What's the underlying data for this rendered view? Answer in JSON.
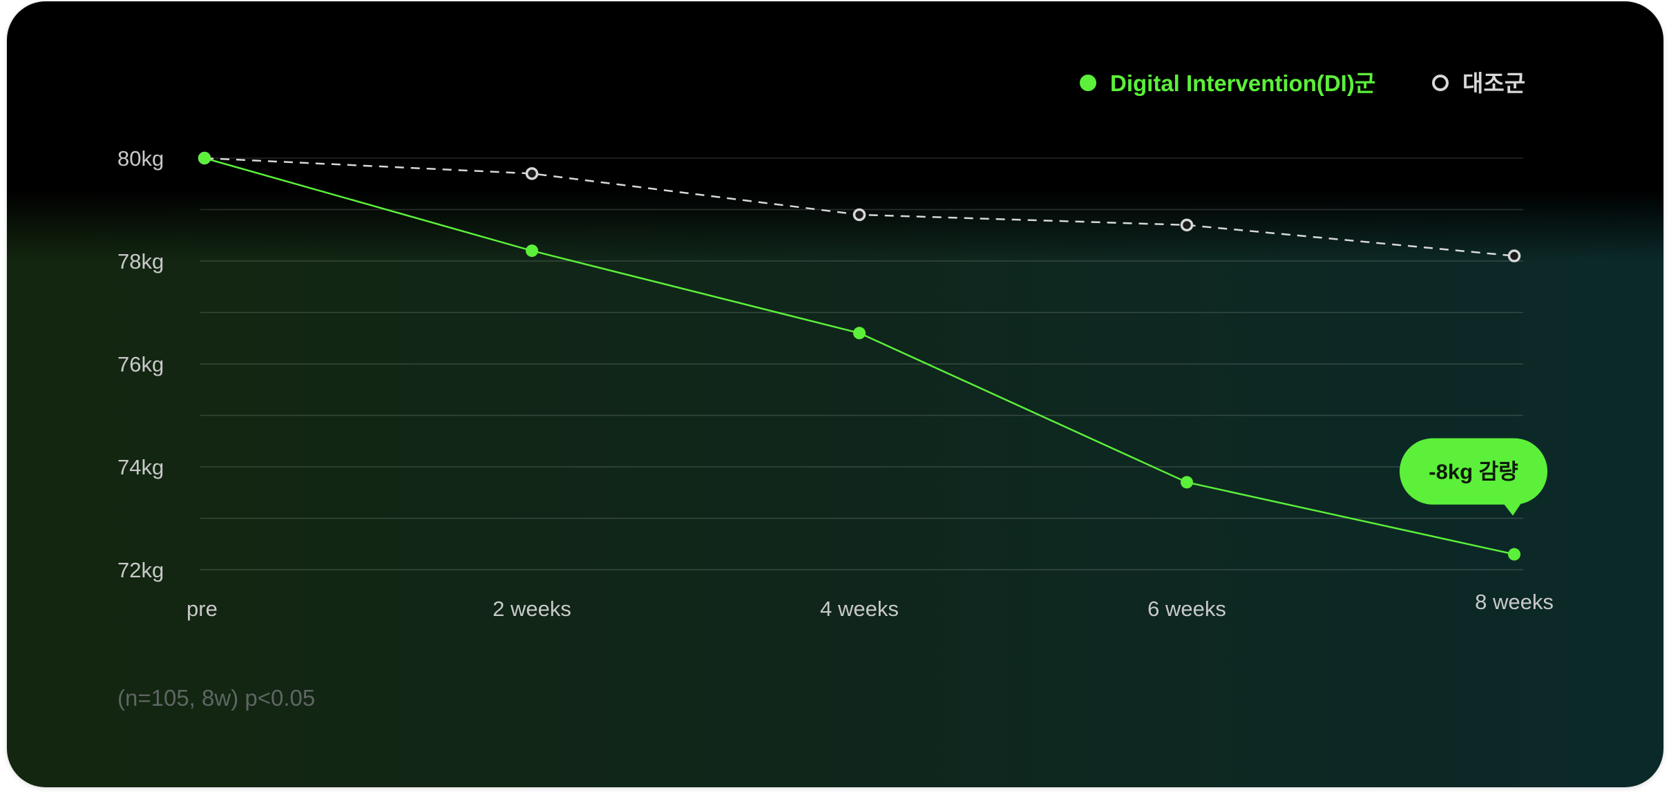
{
  "chart_data": {
    "type": "line",
    "categories": [
      "pre",
      "2 weeks",
      "4 weeks",
      "6 weeks",
      "8 weeks"
    ],
    "y_ticks": [
      "80kg",
      "78kg",
      "76kg",
      "74kg",
      "72kg"
    ],
    "ylim": [
      72,
      80
    ],
    "grid": true,
    "legend_position": "top-right",
    "series": [
      {
        "name": "Digital Intervention(DI)군",
        "values": [
          80.0,
          78.2,
          76.6,
          73.7,
          72.3
        ],
        "color": "#5cf03a",
        "style": "solid"
      },
      {
        "name": "대조군",
        "values": [
          80.0,
          79.7,
          78.9,
          78.7,
          78.1
        ],
        "color": "#d8d8d8",
        "style": "dashed"
      }
    ],
    "annotation": {
      "text": "-8kg 감량",
      "series_index": 0,
      "point_index": 4
    }
  },
  "footnote": "(n=105, 8w) p<0.05"
}
